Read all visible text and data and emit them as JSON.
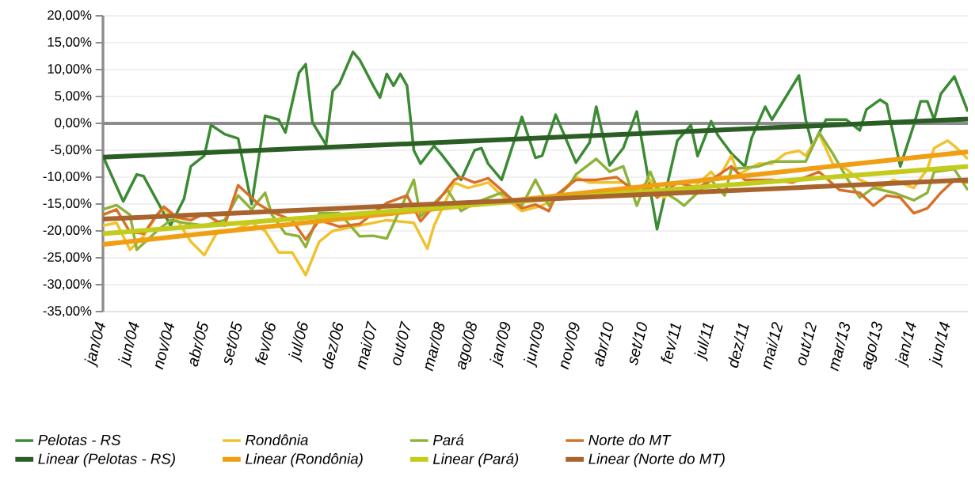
{
  "chart_data": {
    "type": "line",
    "xlim": [
      "2004-01",
      "2014-09"
    ],
    "xticks": [
      {
        "value": "2004-01",
        "label": "jan/04"
      },
      {
        "value": "2004-06",
        "label": "jun/04"
      },
      {
        "value": "2004-11",
        "label": "nov/04"
      },
      {
        "value": "2005-04",
        "label": "abr/05"
      },
      {
        "value": "2005-09",
        "label": "set/05"
      },
      {
        "value": "2006-02",
        "label": "fev/06"
      },
      {
        "value": "2006-07",
        "label": "jul/06"
      },
      {
        "value": "2006-12",
        "label": "dez/06"
      },
      {
        "value": "2007-05",
        "label": "mai/07"
      },
      {
        "value": "2007-10",
        "label": "out/07"
      },
      {
        "value": "2008-03",
        "label": "mar/08"
      },
      {
        "value": "2008-08",
        "label": "ago/08"
      },
      {
        "value": "2009-01",
        "label": "jan/09"
      },
      {
        "value": "2009-06",
        "label": "jun/09"
      },
      {
        "value": "2009-11",
        "label": "nov/09"
      },
      {
        "value": "2010-04",
        "label": "abr/10"
      },
      {
        "value": "2010-09",
        "label": "set/10"
      },
      {
        "value": "2011-02",
        "label": "fev/11"
      },
      {
        "value": "2011-07",
        "label": "jul/11"
      },
      {
        "value": "2011-12",
        "label": "dez/11"
      },
      {
        "value": "2012-05",
        "label": "mai/12"
      },
      {
        "value": "2012-10",
        "label": "out/12"
      },
      {
        "value": "2013-03",
        "label": "mar/13"
      },
      {
        "value": "2013-08",
        "label": "ago/13"
      },
      {
        "value": "2014-01",
        "label": "jan/14"
      },
      {
        "value": "2014-06",
        "label": "jun/14"
      }
    ],
    "ylim": [
      -35,
      20
    ],
    "yticks": [
      {
        "value": -35,
        "label": "-35,00%"
      },
      {
        "value": -30,
        "label": "-30,00%"
      },
      {
        "value": -25,
        "label": "-25,00%"
      },
      {
        "value": -20,
        "label": "-20,00%"
      },
      {
        "value": -15,
        "label": "-15,00%"
      },
      {
        "value": -10,
        "label": "-10,00%"
      },
      {
        "value": -5,
        "label": "-5,00%"
      },
      {
        "value": 0,
        "label": "0,00%"
      },
      {
        "value": 5,
        "label": "5,00%"
      },
      {
        "value": 10,
        "label": "10,00%"
      },
      {
        "value": 15,
        "label": "15,00%"
      },
      {
        "value": 20,
        "label": "20,00%"
      }
    ],
    "grid": "y",
    "legend": "bottom",
    "ref_lines": [
      {
        "axis": "y",
        "value": 0,
        "color": "#8c8c8c"
      }
    ],
    "series": [
      {
        "name": "Pelotas - RS",
        "color": "#3b8a34",
        "x": [
          "2004-01",
          "2004-04",
          "2004-06",
          "2004-07",
          "2004-11",
          "2005-01",
          "2005-02",
          "2005-04",
          "2005-05",
          "2005-07",
          "2005-09",
          "2005-11",
          "2006-01",
          "2006-03",
          "2006-04",
          "2006-06",
          "2006-07",
          "2006-08",
          "2006-10",
          "2006-11",
          "2006-12",
          "2007-02",
          "2007-03",
          "2007-05",
          "2007-06",
          "2007-07",
          "2007-08",
          "2007-09",
          "2007-10",
          "2007-11",
          "2007-12",
          "2008-02",
          "2008-03",
          "2008-06",
          "2008-08",
          "2008-09",
          "2008-10",
          "2008-12",
          "2009-03",
          "2009-05",
          "2009-06",
          "2009-08",
          "2009-11",
          "2010-01",
          "2010-02",
          "2010-04",
          "2010-06",
          "2010-08",
          "2010-11",
          "2011-02",
          "2011-04",
          "2011-05",
          "2011-07",
          "2011-08",
          "2011-10",
          "2011-12",
          "2012-01",
          "2012-03",
          "2012-04",
          "2012-08",
          "2012-09",
          "2012-10",
          "2012-12",
          "2013-03",
          "2013-05",
          "2013-06",
          "2013-08",
          "2013-09",
          "2013-11",
          "2014-01",
          "2014-02",
          "2014-03",
          "2014-04",
          "2014-05",
          "2014-07",
          "2014-09"
        ],
        "values": [
          -6.1,
          -14.5,
          -9.5,
          -9.8,
          -19,
          -14,
          -8,
          -6,
          -0.3,
          -2,
          -2.8,
          -15,
          1.4,
          0.7,
          -1.7,
          9.4,
          11,
          0.2,
          -4,
          6,
          7.4,
          13.3,
          11.8,
          7,
          4.8,
          9.2,
          7,
          9.2,
          7,
          -5,
          -7.5,
          -4.2,
          -5.6,
          -10.5,
          -5,
          -4.6,
          -7.5,
          -10.5,
          1.2,
          -6.4,
          -6,
          1.6,
          -7.3,
          -3.6,
          3.1,
          -7.8,
          -4.6,
          2.2,
          -19.7,
          -3.2,
          -0.3,
          -6.1,
          0.4,
          -2.2,
          -5.6,
          -8,
          -2.7,
          3.1,
          0.7,
          8.9,
          0.7,
          -4.2,
          0.7,
          0.7,
          -1.3,
          2.6,
          4.4,
          3.6,
          -8,
          -0.3,
          4.1,
          4.1,
          0.7,
          5.5,
          8.7,
          2.2
        ]
      },
      {
        "name": "Rondônia",
        "color": "#f0c22e",
        "x": [
          "2004-01",
          "2004-03",
          "2004-05",
          "2004-07",
          "2004-09",
          "2004-10",
          "2004-12",
          "2005-02",
          "2005-04",
          "2005-06",
          "2005-08",
          "2005-11",
          "2006-01",
          "2006-03",
          "2006-05",
          "2006-07",
          "2006-09",
          "2006-11",
          "2007-03",
          "2007-07",
          "2007-11",
          "2008-01",
          "2008-02",
          "2008-05",
          "2008-07",
          "2008-10",
          "2008-12",
          "2009-03",
          "2009-06",
          "2009-08",
          "2009-11",
          "2010-01",
          "2010-04",
          "2010-06",
          "2010-08",
          "2010-10",
          "2010-12",
          "2011-02",
          "2011-04",
          "2011-07",
          "2011-08",
          "2011-10",
          "2011-11",
          "2012-02",
          "2012-04",
          "2012-06",
          "2012-08",
          "2012-09",
          "2012-11",
          "2013-01",
          "2013-03",
          "2013-05",
          "2013-08",
          "2013-10",
          "2014-01",
          "2014-03",
          "2014-04",
          "2014-06",
          "2014-07",
          "2014-09"
        ],
        "values": [
          -19,
          -18.5,
          -23.5,
          -21,
          -17,
          -15.8,
          -18,
          -22,
          -24.5,
          -20,
          -20,
          -18.5,
          -20,
          -24,
          -24,
          -28.2,
          -22,
          -20,
          -19,
          -18,
          -18.5,
          -23.3,
          -19,
          -11,
          -12,
          -11,
          -13.4,
          -16.3,
          -15.3,
          -13.8,
          -10,
          -11,
          -11,
          -11,
          -12.4,
          -10.5,
          -13.8,
          -12,
          -12.4,
          -9,
          -10.5,
          -6,
          -9.5,
          -7.5,
          -7.5,
          -5.6,
          -5.1,
          -6,
          -2,
          -7.5,
          -8.5,
          -10.5,
          -12,
          -10.5,
          -12,
          -8.5,
          -4.6,
          -3.2,
          -4.2,
          -6.6
        ]
      },
      {
        "name": "Pará",
        "color": "#8db33a",
        "x": [
          "2004-01",
          "2004-03",
          "2004-05",
          "2004-06",
          "2004-09",
          "2004-11",
          "2005-01",
          "2005-04",
          "2005-07",
          "2005-09",
          "2005-11",
          "2006-01",
          "2006-02",
          "2006-04",
          "2006-06",
          "2006-07",
          "2006-09",
          "2006-12",
          "2007-03",
          "2007-05",
          "2007-07",
          "2007-11",
          "2007-12",
          "2008-04",
          "2008-06",
          "2008-08",
          "2008-12",
          "2009-03",
          "2009-05",
          "2009-07",
          "2009-10",
          "2009-11",
          "2010-02",
          "2010-04",
          "2010-06",
          "2010-08",
          "2010-10",
          "2010-11",
          "2011-02",
          "2011-03",
          "2011-07",
          "2011-09",
          "2011-10",
          "2012-02",
          "2012-04",
          "2012-06",
          "2012-09",
          "2012-11",
          "2013-01",
          "2013-03",
          "2013-05",
          "2013-07",
          "2013-10",
          "2014-01",
          "2014-03",
          "2014-04",
          "2014-07",
          "2014-08",
          "2014-09"
        ],
        "values": [
          -16,
          -15.2,
          -17,
          -23.5,
          -20,
          -18,
          -18.5,
          -19,
          -18,
          -13.4,
          -16,
          -12.9,
          -17,
          -20.5,
          -21,
          -23,
          -16.7,
          -16.7,
          -21,
          -20.9,
          -21.4,
          -10.5,
          -17.3,
          -12.4,
          -16.3,
          -14.8,
          -12.9,
          -15.3,
          -10.5,
          -15.3,
          -11.5,
          -9.5,
          -6.6,
          -9,
          -8,
          -15.3,
          -9,
          -12,
          -14.3,
          -15.3,
          -10.5,
          -13.4,
          -8.5,
          -8,
          -7.1,
          -7.1,
          -7.1,
          -1.7,
          -5.6,
          -10,
          -13.8,
          -12,
          -12.9,
          -14.3,
          -12.9,
          -9,
          -8.5,
          -10.5,
          -12.4
        ]
      },
      {
        "name": "Norte do MT",
        "color": "#d9702a",
        "x": [
          "2004-01",
          "2004-03",
          "2004-05",
          "2004-07",
          "2004-09",
          "2004-10",
          "2004-12",
          "2005-02",
          "2005-04",
          "2005-07",
          "2005-09",
          "2005-12",
          "2006-02",
          "2006-05",
          "2006-07",
          "2006-09",
          "2006-12",
          "2007-03",
          "2007-07",
          "2007-10",
          "2007-12",
          "2008-02",
          "2008-05",
          "2008-06",
          "2008-08",
          "2008-10",
          "2008-12",
          "2009-03",
          "2009-05",
          "2009-07",
          "2009-08",
          "2009-11",
          "2010-02",
          "2010-05",
          "2010-08",
          "2010-10",
          "2010-11",
          "2011-02",
          "2011-05",
          "2011-07",
          "2011-10",
          "2011-12",
          "2012-04",
          "2012-07",
          "2012-11",
          "2013-02",
          "2013-05",
          "2013-07",
          "2013-09",
          "2013-11",
          "2014-01",
          "2014-03",
          "2014-05",
          "2014-07",
          "2014-09"
        ],
        "values": [
          -17,
          -16,
          -20.2,
          -20.5,
          -17,
          -15.5,
          -17.5,
          -18,
          -16.8,
          -19,
          -11.5,
          -15,
          -16.5,
          -18,
          -21.6,
          -18,
          -19.2,
          -18.7,
          -14.8,
          -13.4,
          -18.2,
          -15.3,
          -10.5,
          -10,
          -11,
          -10.2,
          -12.4,
          -15.8,
          -15.1,
          -16.3,
          -13.4,
          -10.5,
          -10.5,
          -10,
          -12.9,
          -12,
          -13.8,
          -11,
          -12,
          -10.5,
          -8,
          -10.5,
          -10.5,
          -11,
          -9,
          -12.4,
          -12.9,
          -15.3,
          -13.4,
          -13.8,
          -16.7,
          -15.8,
          -12.9,
          -10.5,
          -11
        ]
      },
      {
        "name": "Linear (Pelotas - RS)",
        "color": "#2b5e24",
        "x": [
          "2004-01",
          "2014-09"
        ],
        "values": [
          -6.3,
          0.8
        ]
      },
      {
        "name": "Linear (Rondônia)",
        "color": "#f09e12",
        "x": [
          "2004-01",
          "2014-09"
        ],
        "values": [
          -22.5,
          -5.3
        ]
      },
      {
        "name": "Linear (Pará)",
        "color": "#c3cc1c",
        "x": [
          "2004-01",
          "2014-09"
        ],
        "values": [
          -20.5,
          -8
        ]
      },
      {
        "name": "Linear (Norte do MT)",
        "color": "#a8642c",
        "x": [
          "2004-01",
          "2014-09"
        ],
        "values": [
          -17.8,
          -10.5
        ]
      }
    ]
  }
}
